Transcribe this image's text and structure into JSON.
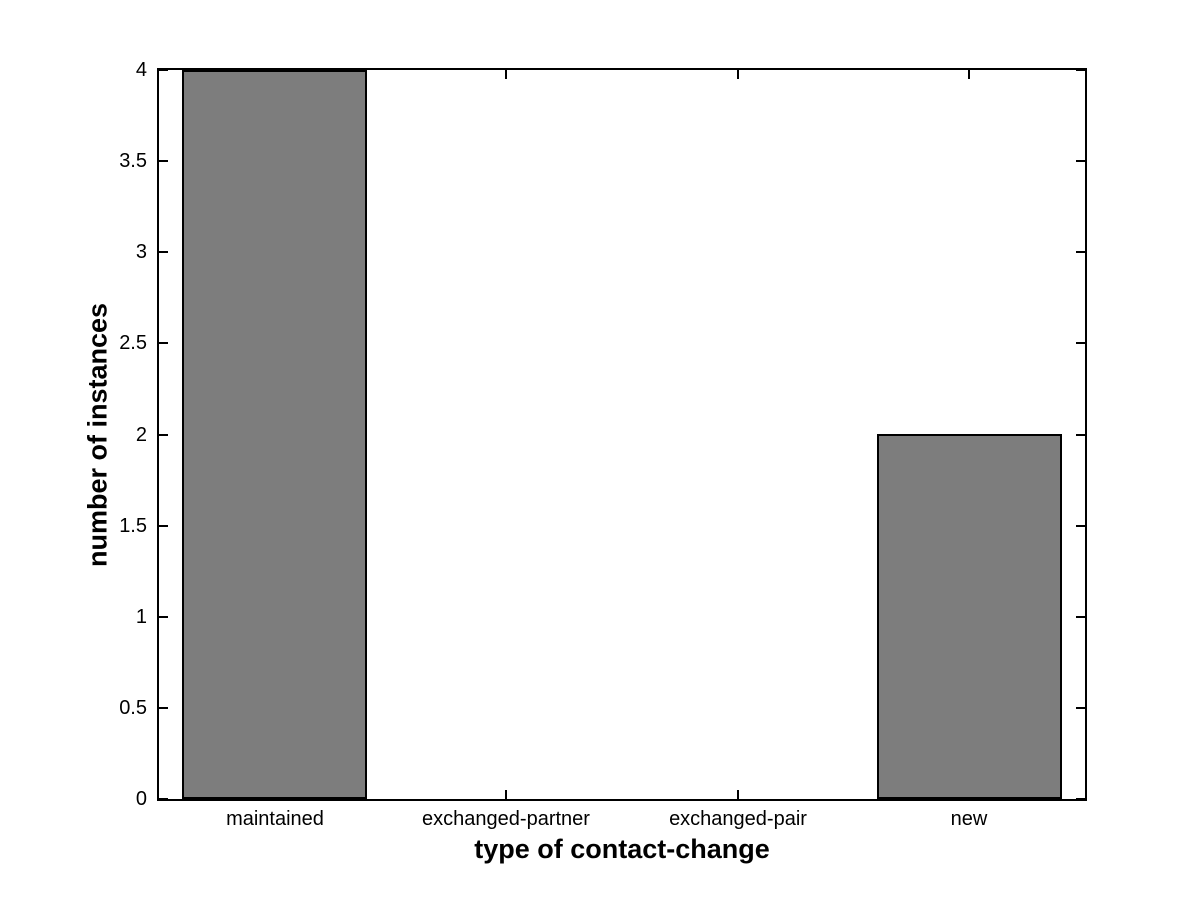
{
  "chart_data": {
    "type": "bar",
    "title": "",
    "xlabel": "type of contact-change",
    "ylabel": "number of instances",
    "categories": [
      "maintained",
      "exchanged-partner",
      "exchanged-pair",
      "new"
    ],
    "values": [
      4,
      0,
      0,
      2
    ],
    "ylim": [
      0,
      4
    ],
    "yticks": [
      0,
      0.5,
      1,
      1.5,
      2,
      2.5,
      3,
      3.5,
      4
    ],
    "ytick_labels": [
      "0",
      "0.5",
      "1",
      "1.5",
      "2",
      "2.5",
      "3",
      "3.5",
      "4"
    ],
    "bar_width_fraction": 0.8,
    "grid": false,
    "legend": "none",
    "colors": {
      "bar_fill": "#7d7d7d",
      "bar_edge": "#000000",
      "axis": "#000000",
      "background": "#ffffff",
      "text": "#000000"
    }
  }
}
